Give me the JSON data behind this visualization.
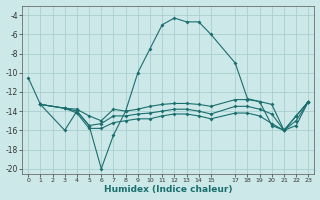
{
  "xlabel": "Humidex (Indice chaleur)",
  "xlim": [
    -0.5,
    23.5
  ],
  "ylim": [
    -20.5,
    -3.0
  ],
  "yticks": [
    -20,
    -18,
    -16,
    -14,
    -12,
    -10,
    -8,
    -6,
    -4
  ],
  "xticks": [
    0,
    1,
    2,
    3,
    4,
    5,
    6,
    7,
    8,
    9,
    10,
    11,
    12,
    13,
    14,
    15,
    17,
    18,
    19,
    20,
    21,
    22,
    23
  ],
  "bg_color": "#cce8e8",
  "grid_color": "#aacece",
  "line_color": "#1a6e6e",
  "lines": [
    {
      "x": [
        0,
        1,
        3,
        4,
        5,
        6,
        7,
        8,
        9,
        10,
        11,
        12,
        13,
        14,
        15,
        17,
        18,
        19,
        20,
        21,
        22,
        23
      ],
      "y": [
        -10.5,
        -13.3,
        -16.0,
        -14.0,
        -15.5,
        -20.0,
        -16.5,
        -14.0,
        -10.0,
        -7.5,
        -5.0,
        -4.3,
        -4.7,
        -4.7,
        -6.0,
        -9.0,
        -12.7,
        -13.0,
        -15.5,
        -16.0,
        -14.5,
        -13.0
      ]
    },
    {
      "x": [
        1,
        3,
        4,
        5,
        6,
        7,
        8,
        9,
        10,
        11,
        12,
        13,
        14,
        15,
        17,
        18,
        19,
        20,
        21,
        22,
        23
      ],
      "y": [
        -13.3,
        -13.7,
        -13.8,
        -14.5,
        -15.0,
        -13.8,
        -14.0,
        -13.8,
        -13.5,
        -13.3,
        -13.2,
        -13.2,
        -13.3,
        -13.5,
        -12.8,
        -12.8,
        -13.0,
        -13.3,
        -16.0,
        -14.5,
        -13.0
      ]
    },
    {
      "x": [
        1,
        3,
        4,
        5,
        6,
        7,
        8,
        9,
        10,
        11,
        12,
        13,
        14,
        15,
        17,
        18,
        19,
        20,
        21,
        22,
        23
      ],
      "y": [
        -13.3,
        -13.7,
        -14.0,
        -15.5,
        -15.3,
        -14.5,
        -14.5,
        -14.3,
        -14.2,
        -14.0,
        -13.8,
        -13.8,
        -14.0,
        -14.3,
        -13.5,
        -13.5,
        -13.8,
        -14.3,
        -16.0,
        -15.0,
        -13.0
      ]
    },
    {
      "x": [
        1,
        3,
        4,
        5,
        6,
        7,
        8,
        9,
        10,
        11,
        12,
        13,
        14,
        15,
        17,
        18,
        19,
        20,
        21,
        22,
        23
      ],
      "y": [
        -13.3,
        -13.7,
        -14.2,
        -15.8,
        -15.8,
        -15.2,
        -15.0,
        -14.8,
        -14.8,
        -14.5,
        -14.3,
        -14.3,
        -14.5,
        -14.8,
        -14.2,
        -14.2,
        -14.5,
        -15.3,
        -16.0,
        -15.5,
        -13.0
      ]
    }
  ]
}
